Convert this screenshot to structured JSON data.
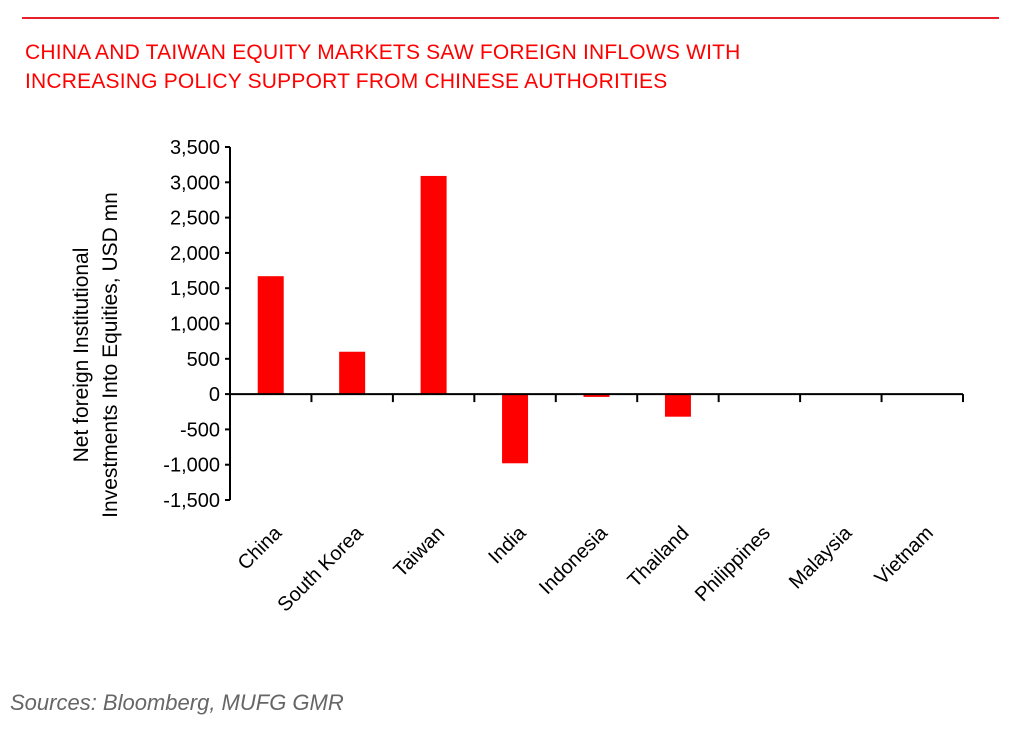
{
  "header": {
    "title_line1": "CHINA AND TAIWAN EQUITY MARKETS SAW FOREIGN INFLOWS WITH",
    "title_line2": "INCREASING POLICY SUPPORT FROM CHINESE AUTHORITIES"
  },
  "footer": {
    "sources": "Sources:  Bloomberg, MUFG GMR"
  },
  "chart_data": {
    "type": "bar",
    "title": "CHINA AND TAIWAN EQUITY MARKETS SAW FOREIGN INFLOWS WITH INCREASING POLICY SUPPORT FROM CHINESE AUTHORITIES",
    "categories": [
      "China",
      "South Korea",
      "Taiwan",
      "India",
      "Indonesia",
      "Thailand",
      "Philippines",
      "Malaysia",
      "Vietnam"
    ],
    "values": [
      1670,
      600,
      3090,
      -980,
      -40,
      -320,
      0,
      0,
      0
    ],
    "xlabel": "",
    "ylabel_line1": "Net foreign Institutional",
    "ylabel_line2": "Investments Into Equities, USD mn",
    "ylim": [
      -1500,
      3500
    ],
    "yticks": [
      "-1,500",
      "-1,000",
      "-500",
      "0",
      "500",
      "1,000",
      "1,500",
      "2,000",
      "2,500",
      "3,000",
      "3,500"
    ],
    "ytick_values": [
      -1500,
      -1000,
      -500,
      0,
      500,
      1000,
      1500,
      2000,
      2500,
      3000,
      3500
    ],
    "bar_color": "#ff0000",
    "grid": false
  }
}
